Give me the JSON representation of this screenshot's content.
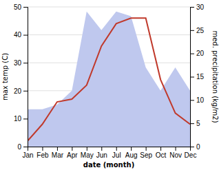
{
  "chart_data": {
    "type": "line",
    "categories": [
      "Jan",
      "Feb",
      "Mar",
      "Apr",
      "May",
      "Jun",
      "Jul",
      "Aug",
      "Sep",
      "Oct",
      "Nov",
      "Dec"
    ],
    "series": [
      {
        "type": "area",
        "axis": "y2",
        "color": "#bfc8ee",
        "values": [
          8,
          8,
          9,
          12,
          29,
          25,
          29,
          28,
          17,
          12,
          17,
          12
        ]
      },
      {
        "type": "line",
        "color": "#c0392b",
        "values": [
          2,
          8,
          16,
          17,
          22,
          36,
          44,
          46,
          46,
          24,
          12,
          8
        ]
      }
    ],
    "xlabel": "date (month)",
    "ylabel": "max temp (C)",
    "y2label": "med. precipitation (kg/m2)",
    "ylim": [
      0,
      50
    ],
    "yticks": [
      0,
      10,
      20,
      30,
      40,
      50
    ],
    "y2lim": [
      0,
      30
    ],
    "y2ticks": [
      0,
      5,
      10,
      15,
      20,
      25,
      30
    ],
    "grid": true
  }
}
